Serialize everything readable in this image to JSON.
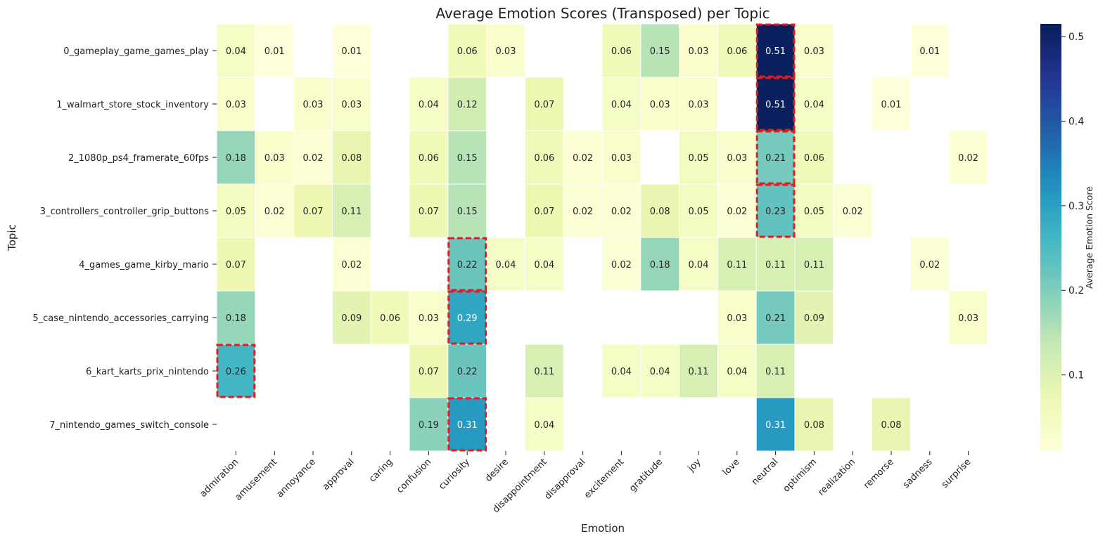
{
  "chart_data": {
    "type": "heatmap",
    "title": "Average Emotion Scores (Transposed) per Topic",
    "xlabel": "Emotion",
    "ylabel": "Topic",
    "colorbar_label": "Average Emotion Score",
    "colorbar_ticks": [
      "0.1",
      "0.2",
      "0.3",
      "0.4",
      "0.5"
    ],
    "colorbar_tick_values": [
      0.1,
      0.2,
      0.3,
      0.4,
      0.5
    ],
    "colorbar_range": [
      0.01,
      0.515
    ],
    "colormap": "YlGnBu",
    "x_categories": [
      "admiration",
      "amusement",
      "annoyance",
      "approval",
      "caring",
      "confusion",
      "curiosity",
      "desire",
      "disappointment",
      "disapproval",
      "excitement",
      "gratitude",
      "joy",
      "love",
      "neutral",
      "optimism",
      "realization",
      "remorse",
      "sadness",
      "surprise"
    ],
    "y_categories": [
      "0_gameplay_game_games_play",
      "1_walmart_store_stock_inventory",
      "2_1080p_ps4_framerate_60fps",
      "3_controllers_controller_grip_buttons",
      "4_games_game_kirby_mario",
      "5_case_nintendo_accessories_carrying",
      "6_kart_karts_prix_nintendo",
      "7_nintendo_games_switch_console"
    ],
    "values": [
      [
        0.04,
        0.01,
        null,
        0.01,
        null,
        null,
        0.06,
        0.03,
        null,
        null,
        0.06,
        0.15,
        0.03,
        0.06,
        0.51,
        0.03,
        null,
        null,
        0.01,
        null
      ],
      [
        0.03,
        null,
        0.03,
        0.03,
        null,
        0.04,
        0.12,
        null,
        0.07,
        null,
        0.04,
        0.03,
        0.03,
        null,
        0.51,
        0.04,
        null,
        0.01,
        null,
        null
      ],
      [
        0.18,
        0.03,
        0.02,
        0.08,
        null,
        0.06,
        0.15,
        null,
        0.06,
        0.02,
        0.03,
        null,
        0.05,
        0.03,
        0.21,
        0.06,
        null,
        null,
        null,
        0.02
      ],
      [
        0.05,
        0.02,
        0.07,
        0.11,
        null,
        0.07,
        0.15,
        null,
        0.07,
        0.02,
        0.02,
        0.08,
        0.05,
        0.02,
        0.23,
        0.05,
        0.02,
        null,
        null,
        null
      ],
      [
        0.07,
        null,
        null,
        0.02,
        null,
        null,
        0.22,
        0.04,
        0.04,
        null,
        0.02,
        0.18,
        0.04,
        0.11,
        0.11,
        0.11,
        null,
        null,
        0.02,
        null
      ],
      [
        0.18,
        null,
        null,
        0.09,
        0.06,
        0.03,
        0.29,
        null,
        null,
        null,
        null,
        null,
        null,
        0.03,
        0.21,
        0.09,
        null,
        null,
        null,
        0.03
      ],
      [
        0.26,
        null,
        null,
        null,
        null,
        0.07,
        0.22,
        null,
        0.11,
        null,
        0.04,
        0.04,
        0.11,
        0.04,
        0.11,
        null,
        null,
        null,
        null,
        null
      ],
      [
        null,
        null,
        null,
        null,
        null,
        0.19,
        0.31,
        null,
        0.04,
        null,
        null,
        null,
        null,
        null,
        0.31,
        0.08,
        null,
        0.08,
        null,
        null
      ]
    ],
    "highlighted_cells": [
      {
        "topic": "0_gameplay_game_games_play",
        "emotion": "neutral"
      },
      {
        "topic": "1_walmart_store_stock_inventory",
        "emotion": "neutral"
      },
      {
        "topic": "2_1080p_ps4_framerate_60fps",
        "emotion": "neutral"
      },
      {
        "topic": "3_controllers_controller_grip_buttons",
        "emotion": "neutral"
      },
      {
        "topic": "4_games_game_kirby_mario",
        "emotion": "curiosity"
      },
      {
        "topic": "5_case_nintendo_accessories_carrying",
        "emotion": "curiosity"
      },
      {
        "topic": "6_kart_karts_prix_nintendo",
        "emotion": "admiration"
      },
      {
        "topic": "7_nintendo_games_switch_console",
        "emotion": "curiosity"
      }
    ],
    "highlight_color": "#e8191c"
  }
}
